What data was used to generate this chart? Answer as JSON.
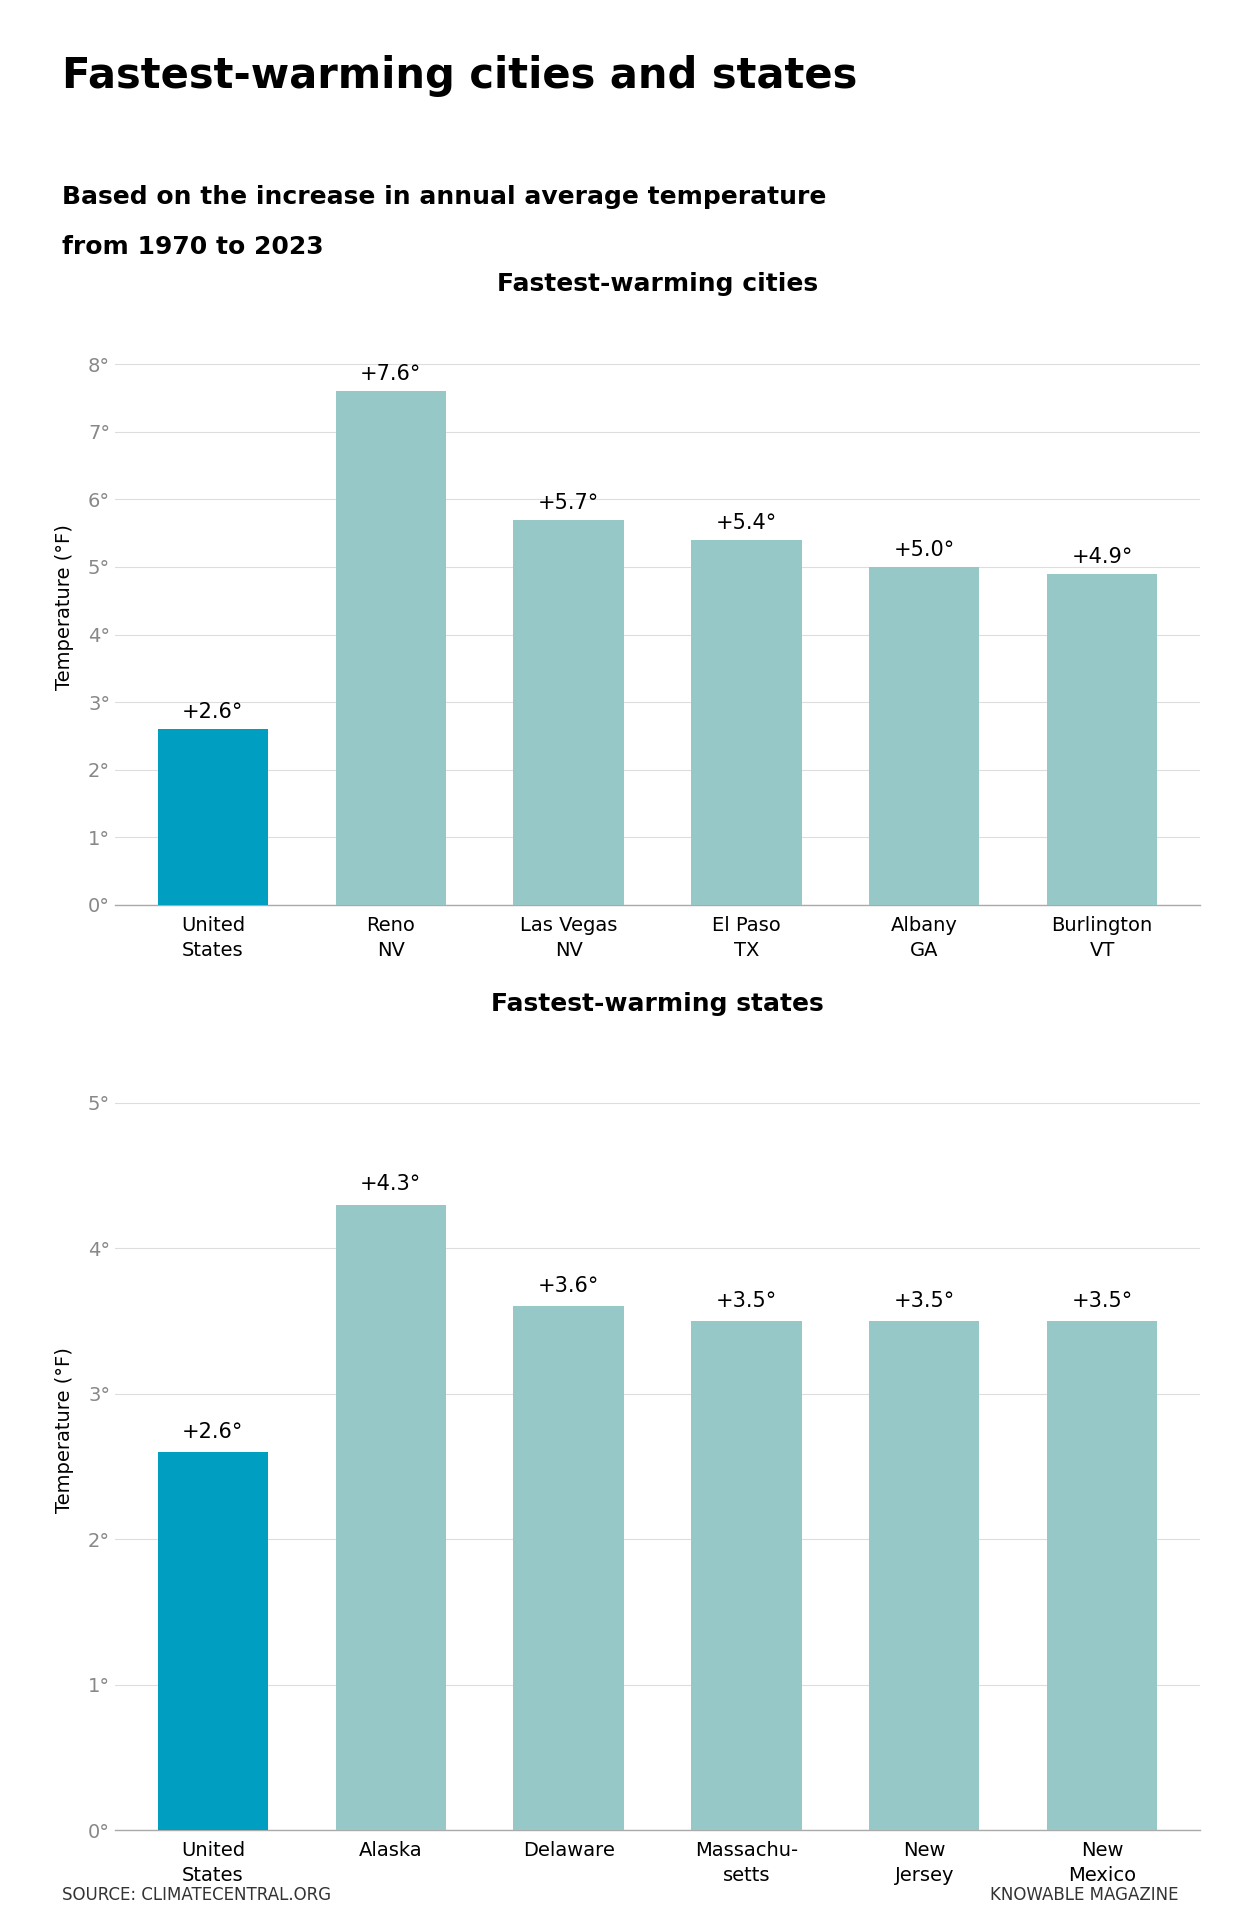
{
  "main_title": "Fastest-warming cities and states",
  "subtitle_line1": "Based on the increase in annual average temperature",
  "subtitle_line2": "from 1970 to 2023",
  "source_text": "SOURCE: CLIMATECENTRAL.ORG",
  "credit_text": "KNOWABLE MAGAZINE",
  "top_bar_color": "#96c8c8",
  "highlight_bar_color": "#009fc2",
  "header_bar_color": "#cfe8e8",
  "cities_title": "Fastest-warming cities",
  "cities_categories": [
    "United\nStates",
    "Reno\nNV",
    "Las Vegas\nNV",
    "El Paso\nTX",
    "Albany\nGA",
    "Burlington\nVT"
  ],
  "cities_values": [
    2.6,
    7.6,
    5.7,
    5.4,
    5.0,
    4.9
  ],
  "cities_labels": [
    "+2.6°",
    "+7.6°",
    "+5.7°",
    "+5.4°",
    "+5.0°",
    "+4.9°"
  ],
  "cities_is_highlight": [
    true,
    false,
    false,
    false,
    false,
    false
  ],
  "cities_ylim": [
    0,
    8.8
  ],
  "cities_yticks": [
    0,
    1,
    2,
    3,
    4,
    5,
    6,
    7,
    8
  ],
  "states_title": "Fastest-warming states",
  "states_categories": [
    "United\nStates",
    "Alaska",
    "Delaware",
    "Massachu-\nsetts",
    "New\nJersey",
    "New\nMexico"
  ],
  "states_values": [
    2.6,
    4.3,
    3.6,
    3.5,
    3.5,
    3.5
  ],
  "states_labels": [
    "+2.6°",
    "+4.3°",
    "+3.6°",
    "+3.5°",
    "+3.5°",
    "+3.5°"
  ],
  "states_is_highlight": [
    true,
    false,
    false,
    false,
    false,
    false
  ],
  "states_ylim": [
    0,
    5.5
  ],
  "states_yticks": [
    0,
    1,
    2,
    3,
    4,
    5
  ],
  "ylabel": "Temperature (°F)",
  "background_color": "#ffffff",
  "title_fontsize": 30,
  "subtitle_fontsize": 18,
  "chart_title_fontsize": 18,
  "tick_label_fontsize": 14,
  "bar_label_fontsize": 15,
  "axis_label_fontsize": 14,
  "source_fontsize": 12
}
